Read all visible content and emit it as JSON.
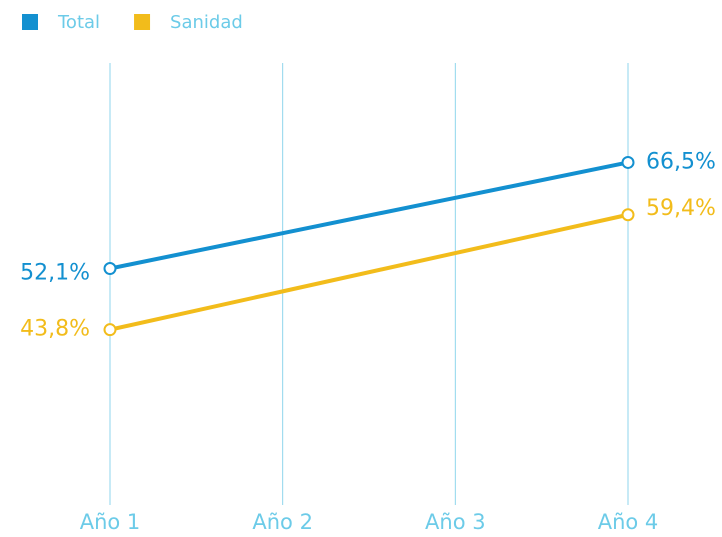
{
  "chart_data": {
    "type": "line",
    "categories": [
      "Año 1",
      "Año 2",
      "Año 3",
      "Año 4"
    ],
    "series": [
      {
        "name": "Total",
        "color": "#1390d0",
        "values": [
          52.1,
          56.9,
          61.7,
          66.5
        ],
        "value_labels": [
          "52,1%",
          null,
          null,
          "66,5%"
        ]
      },
      {
        "name": "Sanidad",
        "color": "#f2bc1b",
        "values": [
          43.8,
          49.0,
          54.2,
          59.4
        ],
        "value_labels": [
          "43,8%",
          null,
          null,
          "59,4%"
        ]
      }
    ],
    "ylim": [
      20,
      80
    ],
    "grid": true
  }
}
